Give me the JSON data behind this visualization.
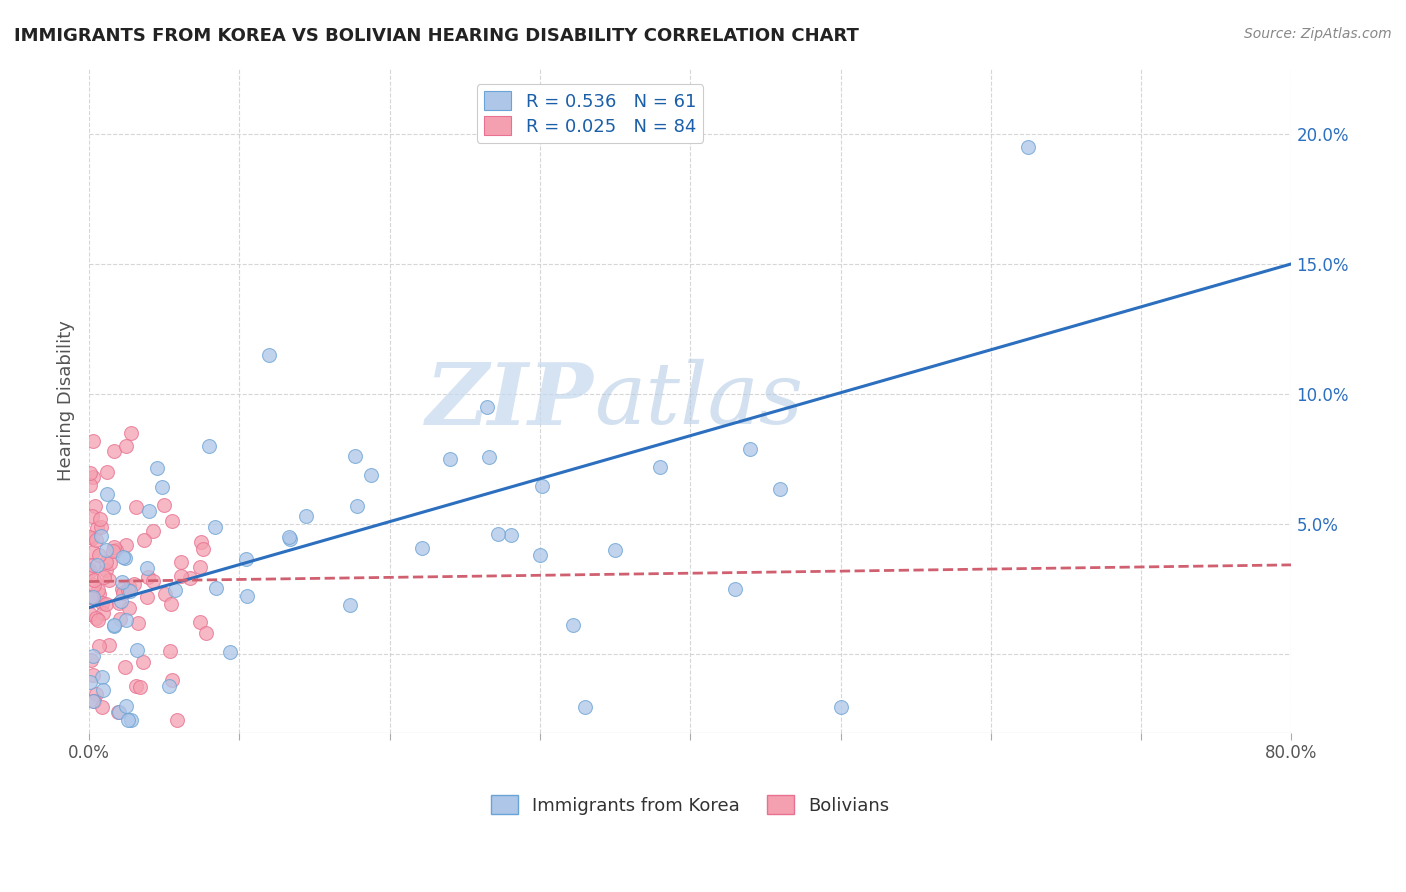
{
  "title": "IMMIGRANTS FROM KOREA VS BOLIVIAN HEARING DISABILITY CORRELATION CHART",
  "source": "Source: ZipAtlas.com",
  "ylabel": "Hearing Disability",
  "xlim": [
    0.0,
    0.8
  ],
  "ylim": [
    -0.03,
    0.225
  ],
  "right_yticks": [
    0.0,
    0.05,
    0.1,
    0.15,
    0.2
  ],
  "right_yticklabels": [
    "",
    "5.0%",
    "10.0%",
    "15.0%",
    "20.0%"
  ],
  "xticks": [
    0.0,
    0.1,
    0.2,
    0.3,
    0.4,
    0.5,
    0.6,
    0.7,
    0.8
  ],
  "xticklabels": [
    "0.0%",
    "",
    "",
    "",
    "",
    "",
    "",
    "",
    "80.0%"
  ],
  "korea_color": "#aec6e8",
  "korea_edge": "#6aa3d5",
  "bolivia_color": "#f4a0b0",
  "bolivia_edge": "#e87090",
  "korea_line_color": "#2c6fbe",
  "bolivia_line_color": "#d06070",
  "korea_R": 0.536,
  "korea_N": 61,
  "bolivia_R": 0.025,
  "bolivia_N": 84,
  "watermark_zip": "ZIP",
  "watermark_atlas": "atlas",
  "legend_label_korea": "Immigrants from Korea",
  "legend_label_bolivia": "Bolivians",
  "background_color": "#ffffff",
  "grid_color": "#cccccc",
  "title_color": "#222222",
  "legend_text_color": "#1a5fa8",
  "bottom_legend_color": "#333333",
  "korea_trend_slope": 0.165,
  "korea_trend_intercept": 0.018,
  "bolivia_trend_slope": 0.008,
  "bolivia_trend_intercept": 0.028
}
